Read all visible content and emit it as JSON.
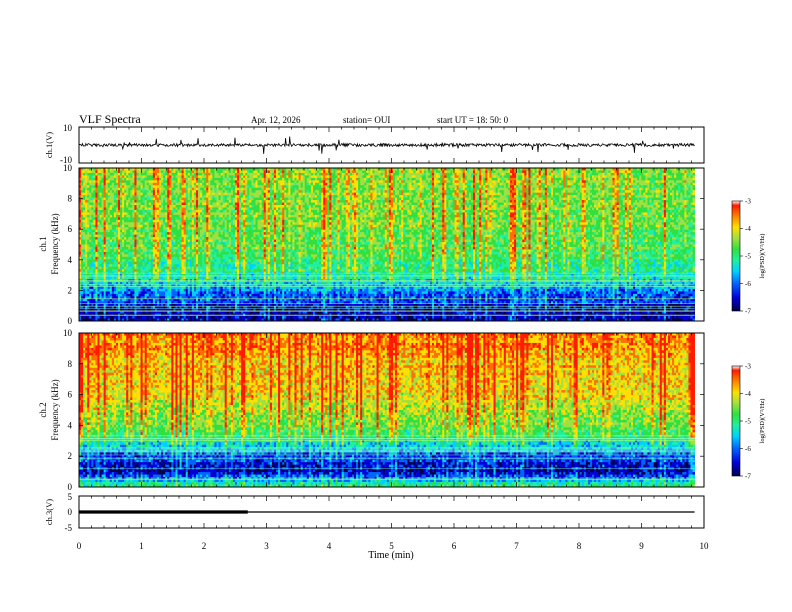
{
  "header": {
    "title": "VLF Spectra",
    "date": "Apr. 12, 2026",
    "station": "station= OUI",
    "start_ut": "start  UT  =   18: 50: 0"
  },
  "chart_data": [
    {
      "type": "line",
      "panel": "ch1-waveform",
      "ylabel": "ch.1(V)",
      "ylim": [
        -10,
        10
      ],
      "yticks": [
        "10",
        "-10"
      ],
      "xlim": [
        0,
        9.85
      ],
      "baseline": 0,
      "color": "#000000"
    },
    {
      "type": "heatmap",
      "panel": "ch1-spectrogram",
      "ylabel": "ch.1\nFrequency  (kHz)",
      "ylabel_lines": [
        "ch.1",
        "Frequency  (kHz)"
      ],
      "ylim": [
        0,
        10
      ],
      "yticks": [
        "0",
        "2",
        "4",
        "6",
        "8",
        "10"
      ],
      "xlim": [
        0,
        9.85
      ],
      "colorbar": {
        "label": "log(PSD)(V²/Hz)",
        "range": [
          -7,
          -3
        ],
        "ticks": [
          "-3",
          "-4",
          "-5",
          "-6",
          "-7"
        ]
      },
      "approx_log_psd_profile": {
        "freq_khz": [
          0,
          1,
          2,
          3,
          4,
          6,
          8,
          10
        ],
        "log_psd": [
          -6.6,
          -6.4,
          -6.0,
          -5.3,
          -4.9,
          -4.7,
          -4.6,
          -4.5
        ]
      }
    },
    {
      "type": "heatmap",
      "panel": "ch2-spectrogram",
      "ylabel": "ch.2\nFrequency  (kHz)",
      "ylabel_lines": [
        "ch.2",
        "Frequency  (kHz)"
      ],
      "ylim": [
        0,
        10
      ],
      "yticks": [
        "0",
        "2",
        "4",
        "6",
        "8",
        "10"
      ],
      "xlim": [
        0,
        9.85
      ],
      "colorbar": {
        "label": "log(PSD)(V²/Hz)",
        "range": [
          -7,
          -3
        ],
        "ticks": [
          "-3",
          "-4",
          "-5",
          "-6",
          "-7"
        ]
      },
      "approx_log_psd_profile": {
        "freq_khz": [
          0,
          1,
          2,
          3,
          4,
          6,
          8,
          10
        ],
        "log_psd": [
          -5.0,
          -6.5,
          -6.2,
          -5.2,
          -4.6,
          -4.1,
          -3.9,
          -3.6
        ]
      }
    },
    {
      "type": "line",
      "panel": "ch3-trace",
      "ylabel": "ch.3(V)",
      "ylim": [
        -5,
        5
      ],
      "yticks": [
        "5",
        "0",
        "-5"
      ],
      "xlabel": "Time  (min)",
      "xlim": [
        0,
        10
      ],
      "xticks": [
        "0",
        "1",
        "2",
        "3",
        "4",
        "5",
        "6",
        "7",
        "8",
        "9",
        "10"
      ],
      "x": [
        0,
        2.7,
        2.7,
        9.85
      ],
      "y": [
        0,
        0,
        0,
        0
      ],
      "thick_until_min": 2.7,
      "color": "#000000"
    }
  ],
  "colors": {
    "colormap": [
      "#00004a",
      "#0000d8",
      "#0064ff",
      "#00d0ff",
      "#20f0a0",
      "#30e040",
      "#a0e040",
      "#ffe000",
      "#ff7000",
      "#ff1a00"
    ]
  }
}
